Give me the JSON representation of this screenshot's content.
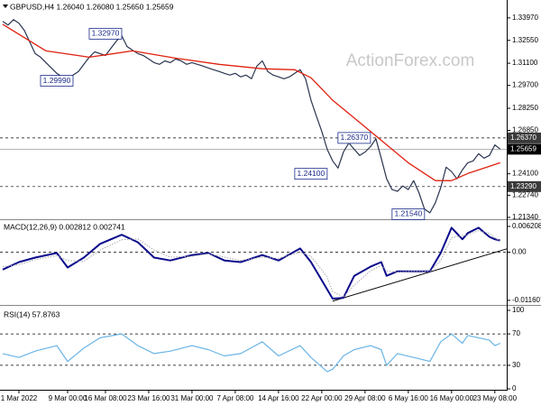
{
  "chart_data": [
    {
      "type": "line",
      "title": "GBPUSD,H4 1.26040 1.26080 1.25650 1.25659",
      "watermark": "ActionForex.com",
      "xlim": [
        -0.5,
        93.2
      ],
      "ylim": [
        1.2128,
        1.3499
      ],
      "yticks": [
        {
          "value": 1.3397,
          "label": "1.33970"
        },
        {
          "value": 1.3255,
          "label": "1.32550"
        },
        {
          "value": 1.311,
          "label": "1.31100"
        },
        {
          "value": 1.297,
          "label": "1.29700"
        },
        {
          "value": 1.2825,
          "label": "1.28250"
        },
        {
          "value": 1.2685,
          "label": "1.26850"
        },
        {
          "value": 1.241,
          "label": "1.24100"
        },
        {
          "value": 1.2274,
          "label": "1.22740"
        },
        {
          "value": 1.2134,
          "label": "1.21340"
        }
      ],
      "x": [
        0,
        1,
        2,
        3,
        4,
        5,
        6,
        7,
        8,
        9,
        10,
        11,
        12,
        13,
        14,
        15,
        16,
        17,
        18,
        19,
        20,
        21,
        22,
        23,
        24,
        25,
        26,
        27,
        28,
        29,
        30,
        31,
        32,
        33,
        34,
        35,
        36,
        37,
        38,
        39,
        40,
        41,
        42,
        43,
        44,
        45,
        46,
        47,
        48,
        49,
        50,
        51,
        52,
        53,
        54,
        55,
        56,
        57,
        58,
        59,
        60,
        61,
        62,
        63,
        64,
        65,
        66,
        67,
        68,
        69,
        70,
        71,
        72,
        73,
        74,
        75,
        76,
        77,
        78,
        79,
        80,
        81,
        82,
        83,
        84,
        85,
        86,
        87,
        88,
        89,
        90,
        91,
        92
      ],
      "series": [
        {
          "color": "#2a3550",
          "width": 1.2,
          "style": "solid",
          "values": [
            1.3375,
            1.3352,
            1.3386,
            1.3363,
            1.3318,
            1.3244,
            1.3171,
            1.3148,
            1.3114,
            1.308,
            1.3046,
            1.3024,
            1.3001,
            1.3035,
            1.3058,
            1.3103,
            1.3148,
            1.3182,
            1.3171,
            1.3159,
            1.3205,
            1.325,
            1.3284,
            1.3216,
            1.3193,
            1.3171,
            1.3159,
            1.3137,
            1.3114,
            1.3103,
            1.3125,
            1.3114,
            1.3137,
            1.3125,
            1.3103,
            1.3114,
            1.3103,
            1.3092,
            1.308,
            1.3069,
            1.3058,
            1.3046,
            1.3035,
            1.3046,
            1.3024,
            1.3035,
            1.3012,
            1.3092,
            1.3125,
            1.3058,
            1.3035,
            1.3024,
            1.3012,
            1.3024,
            1.3046,
            1.3069,
            1.3012,
            1.2876,
            1.2775,
            1.2678,
            1.2565,
            1.2492,
            1.2446,
            1.2548,
            1.2605,
            1.2565,
            1.2526,
            1.2548,
            1.2582,
            1.2632,
            1.2509,
            1.2378,
            1.231,
            1.2299,
            1.2333,
            1.231,
            1.2367,
            1.2288,
            1.2186,
            1.2163,
            1.2226,
            1.2322,
            1.2452,
            1.2424,
            1.2378,
            1.2435,
            1.248,
            1.2492,
            1.2537,
            1.2509,
            1.2526,
            1.2593,
            1.2566
          ]
        },
        {
          "color": "#e0200f",
          "width": 1.3,
          "style": "solid",
          "x": [
            0,
            8,
            16,
            24,
            32,
            40,
            48,
            54,
            57,
            61,
            66,
            69,
            75,
            80,
            83,
            86,
            92
          ],
          "values": [
            1.3357,
            1.3188,
            1.3148,
            1.3188,
            1.3142,
            1.3103,
            1.3075,
            1.3069,
            1.3018,
            1.2876,
            1.2735,
            1.265,
            1.248,
            1.2367,
            1.2367,
            1.2412,
            1.248
          ]
        }
      ],
      "levels": [
        {
          "value": 1.2637,
          "label": "1.26370",
          "style": "dashed"
        },
        {
          "value": 1.2329,
          "label": "1.23290",
          "style": "dashed"
        },
        {
          "value": 1.25659,
          "label": "1.25659",
          "style": "solid"
        }
      ],
      "annotations": [
        {
          "x": 19,
          "value": 1.3297,
          "label": "1.32970"
        },
        {
          "x": 10,
          "value": 1.2999,
          "label": "1.29990"
        },
        {
          "x": 65,
          "value": 1.2637,
          "label": "1.26370"
        },
        {
          "x": 57,
          "value": 1.241,
          "label": "1.24100"
        },
        {
          "x": 75,
          "value": 1.2154,
          "label": "1.21540"
        }
      ]
    },
    {
      "type": "line",
      "title": "MACD(12,26,9) 0.002812 0.002741",
      "xlim": [
        -0.5,
        93.2
      ],
      "ylim": [
        -0.0125,
        0.0075
      ],
      "yticks": [
        {
          "value": 0.006208,
          "label": "0.006208"
        },
        {
          "value": 0,
          "label": "0.00"
        },
        {
          "value": -0.011607,
          "label": "-0.011607"
        }
      ],
      "levels": [
        {
          "value": 0,
          "style": "dashed"
        }
      ],
      "x": [
        0,
        3,
        6,
        10,
        12,
        15,
        18,
        22,
        25,
        28,
        31,
        35,
        38,
        41,
        44,
        48,
        51,
        55,
        57,
        60,
        61,
        63,
        65,
        68,
        70,
        71,
        73,
        76,
        79,
        81,
        83,
        85,
        86,
        88,
        90,
        91,
        92
      ],
      "series": [
        {
          "color": "#0b0b8c",
          "width": 2,
          "style": "solid",
          "values": [
            -0.0042,
            -0.0024,
            -0.0013,
            -0.0002,
            -0.0037,
            -0.0013,
            0.002,
            0.0042,
            0.0024,
            -0.0013,
            -0.002,
            -0.0007,
            -0.0002,
            -0.002,
            -0.0024,
            -0.0007,
            -0.002,
            0.0009,
            -0.0024,
            -0.009,
            -0.0112,
            -0.011,
            -0.0057,
            -0.0035,
            -0.0024,
            -0.0057,
            -0.0046,
            -0.0046,
            -0.0046,
            -0.0002,
            0.0059,
            0.0031,
            0.0046,
            0.0059,
            0.0037,
            0.0031,
            0.0028
          ]
        },
        {
          "color": "#a8a8a8",
          "width": 1,
          "style": "dotted",
          "values": [
            -0.0035,
            -0.003,
            -0.0018,
            -0.0008,
            -0.002,
            -0.0022,
            0.0005,
            0.003,
            0.0032,
            0.0005,
            -0.0012,
            -0.001,
            -0.0004,
            -0.0012,
            -0.002,
            -0.0012,
            -0.0015,
            0,
            -0.001,
            -0.006,
            -0.0095,
            -0.0108,
            -0.008,
            -0.0045,
            -0.0032,
            -0.0045,
            -0.0048,
            -0.0046,
            -0.0046,
            -0.002,
            0.0035,
            0.004,
            0.0042,
            0.0052,
            0.0045,
            0.0035,
            0.0027
          ]
        }
      ],
      "trendline": {
        "color": "#000000",
        "x": [
          61,
          93.2
        ],
        "values": [
          -0.0118,
          0.0008
        ]
      }
    },
    {
      "type": "line",
      "title": "RSI(14) 57.8763",
      "xlim": [
        -0.5,
        93.2
      ],
      "ylim": [
        0,
        100
      ],
      "yticks": [
        100,
        70,
        30,
        0
      ],
      "levels": [
        {
          "value": 70,
          "style": "dashed"
        },
        {
          "value": 30,
          "style": "dashed"
        }
      ],
      "x": [
        0,
        3,
        6,
        10,
        12,
        15,
        18,
        22,
        25,
        28,
        31,
        35,
        38,
        41,
        44,
        48,
        51,
        55,
        57,
        60,
        61,
        63,
        65,
        68,
        70,
        71,
        73,
        76,
        79,
        81,
        83,
        85,
        86,
        88,
        90,
        91,
        92
      ],
      "series": [
        {
          "color": "#6ab4e6",
          "width": 1.2,
          "style": "solid",
          "values": [
            45,
            40,
            48,
            55,
            35,
            52,
            65,
            70,
            55,
            45,
            48,
            55,
            50,
            42,
            45,
            60,
            42,
            55,
            40,
            22,
            25,
            42,
            50,
            55,
            50,
            30,
            45,
            40,
            35,
            60,
            70,
            58,
            68,
            65,
            62,
            55,
            58
          ]
        }
      ],
      "xticks": [
        {
          "value": 3,
          "label": "1 Mar 2022"
        },
        {
          "value": 12,
          "label": "9 Mar 00:00"
        },
        {
          "value": 19,
          "label": "16 Mar 08:00"
        },
        {
          "value": 27,
          "label": "23 Mar 16:00"
        },
        {
          "value": 35,
          "label": "31 Mar 00:00"
        },
        {
          "value": 43,
          "label": "7 Apr 08:00"
        },
        {
          "value": 51,
          "label": "14 Apr 16:00"
        },
        {
          "value": 59,
          "label": "22 Apr 00:00"
        },
        {
          "value": 67,
          "label": "29 Apr 08:00"
        },
        {
          "value": 75,
          "label": "6 May 16:00"
        },
        {
          "value": 83,
          "label": "16 May 00:00"
        },
        {
          "value": 91,
          "label": "23 May 08:00"
        }
      ]
    }
  ]
}
